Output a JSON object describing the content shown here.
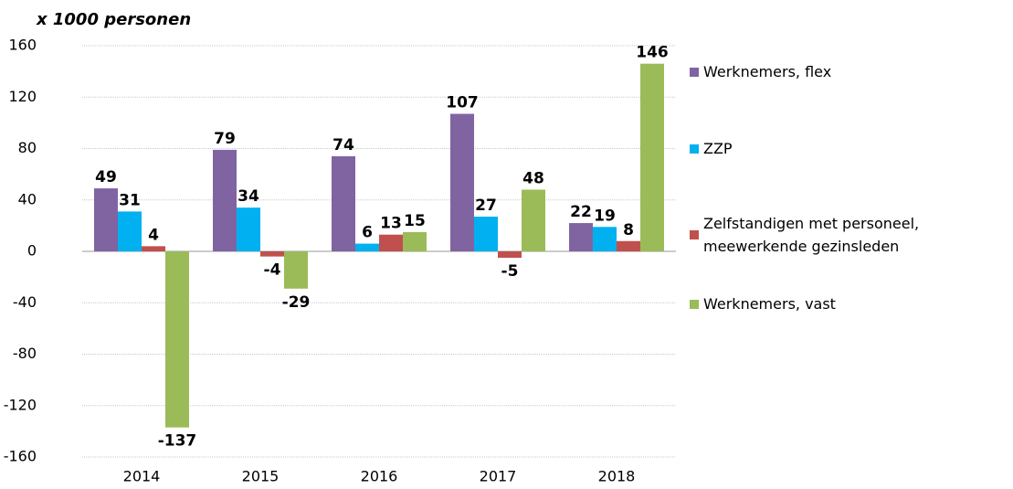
{
  "chart_data": {
    "type": "bar",
    "y_label": "x 1000 personen",
    "categories": [
      "2014",
      "2015",
      "2016",
      "2017",
      "2018"
    ],
    "series": [
      {
        "name": "Werknemers, flex",
        "color": "#8064a2",
        "values": [
          49,
          79,
          74,
          107,
          22
        ]
      },
      {
        "name": "ZZP",
        "color": "#00b0f0",
        "values": [
          31,
          34,
          6,
          27,
          19
        ]
      },
      {
        "name": "Zelfstandigen met personeel, meewerkende gezinsleden",
        "color": "#c0504d",
        "values": [
          4,
          -4,
          13,
          -5,
          8
        ]
      },
      {
        "name": "Werknemers, vast",
        "color": "#9bbb59",
        "values": [
          -137,
          -29,
          15,
          48,
          146
        ]
      }
    ],
    "ylim": [
      -160,
      160
    ],
    "yticks": [
      -160,
      -120,
      -80,
      -40,
      0,
      40,
      80,
      120,
      160
    ],
    "grid": true,
    "legend": "right"
  }
}
